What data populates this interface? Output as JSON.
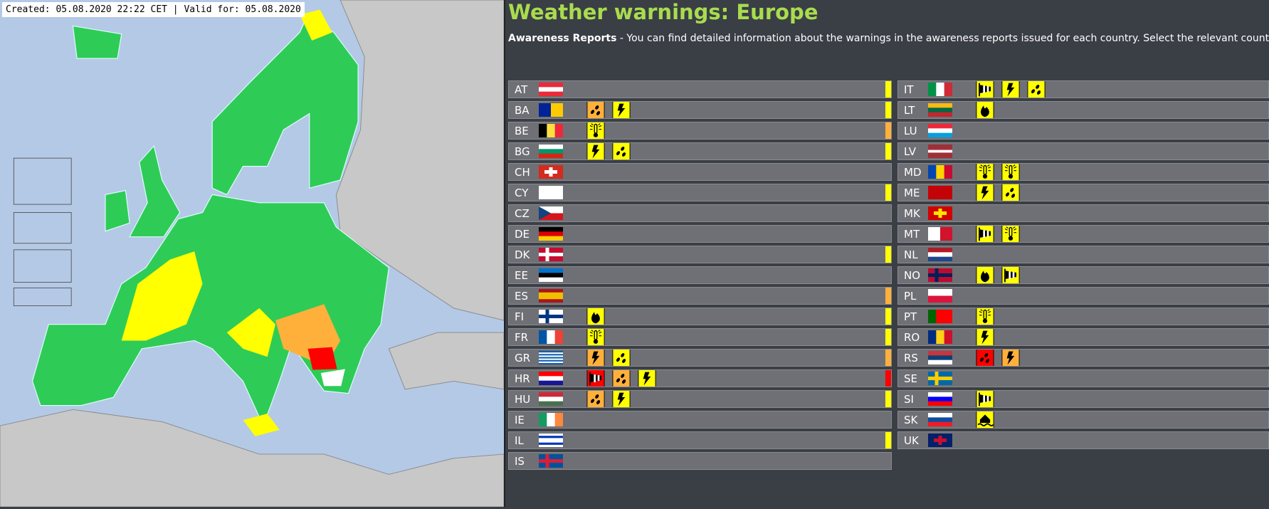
{
  "map": {
    "caption": "Created: 05.08.2020 22:22 CET | Valid for: 05.08.2020"
  },
  "header": {
    "title": "Weather warnings: Europe",
    "intro_label": "Awareness Reports",
    "intro_text": " - You can find detailed information about the warnings in the awareness reports issued for each country. Select the relevant country"
  },
  "columns": [
    [
      {
        "code": "AT",
        "flag_dir": "h",
        "flag": [
          "#ed2939",
          "#ffffff",
          "#ed2939"
        ],
        "warnings": [],
        "edge": "#ffff00"
      },
      {
        "code": "BA",
        "flag_dir": "v",
        "flag": [
          "#002395",
          "#fecb00"
        ],
        "warnings": [
          {
            "type": "rain",
            "color": "#ffb03b"
          },
          {
            "type": "thunderstorm",
            "color": "#ffff00"
          }
        ],
        "edge": "#ffff00"
      },
      {
        "code": "BE",
        "flag_dir": "v",
        "flag": [
          "#000000",
          "#fae042",
          "#ed2939"
        ],
        "warnings": [
          {
            "type": "heat",
            "color": "#ffff00"
          }
        ],
        "edge": "#ffb03b"
      },
      {
        "code": "BG",
        "flag_dir": "h",
        "flag": [
          "#ffffff",
          "#00966e",
          "#d62612"
        ],
        "warnings": [
          {
            "type": "thunderstorm",
            "color": "#ffff00"
          },
          {
            "type": "rain",
            "color": "#ffff00"
          }
        ],
        "edge": "#ffff00"
      },
      {
        "code": "CH",
        "flag_dir": "h",
        "flag": [
          "#d52b1e"
        ],
        "cross": "#ffffff",
        "cross_style": "centered",
        "warnings": []
      },
      {
        "code": "CY",
        "flag_dir": "h",
        "flag": [
          "#ffffff"
        ],
        "warnings": [],
        "edge": "#ffff00"
      },
      {
        "code": "CZ",
        "flag_dir": "h",
        "flag": [
          "#ffffff",
          "#d7141a"
        ],
        "triangle": "#11457e",
        "warnings": []
      },
      {
        "code": "DE",
        "flag_dir": "h",
        "flag": [
          "#000000",
          "#dd0000",
          "#ffce00"
        ],
        "warnings": []
      },
      {
        "code": "DK",
        "flag_dir": "h",
        "flag": [
          "#c60c30"
        ],
        "cross": "#ffffff",
        "cross_style": "nordic",
        "warnings": [],
        "edge": "#ffff00"
      },
      {
        "code": "EE",
        "flag_dir": "h",
        "flag": [
          "#0072ce",
          "#000000",
          "#ffffff"
        ],
        "warnings": []
      },
      {
        "code": "ES",
        "flag_dir": "h",
        "flag": [
          "#aa151b",
          "#f1bf00",
          "#f1bf00",
          "#aa151b"
        ],
        "warnings": [],
        "edge": "#ffb03b"
      },
      {
        "code": "FI",
        "flag_dir": "h",
        "flag": [
          "#ffffff"
        ],
        "cross": "#003580",
        "cross_style": "nordic",
        "warnings": [
          {
            "type": "fire",
            "color": "#ffff00"
          }
        ],
        "edge": "#ffff00"
      },
      {
        "code": "FR",
        "flag_dir": "v",
        "flag": [
          "#0055a4",
          "#ffffff",
          "#ef4135"
        ],
        "warnings": [
          {
            "type": "heat",
            "color": "#ffff00"
          }
        ],
        "edge": "#ffff00"
      },
      {
        "code": "GR",
        "flag_dir": "h",
        "flag": [
          "#0d5eaf",
          "#ffffff",
          "#0d5eaf",
          "#ffffff",
          "#0d5eaf",
          "#ffffff",
          "#0d5eaf",
          "#ffffff",
          "#0d5eaf"
        ],
        "warnings": [
          {
            "type": "thunderstorm",
            "color": "#ffb03b"
          },
          {
            "type": "rain",
            "color": "#ffff00"
          }
        ],
        "edge": "#ffb03b"
      },
      {
        "code": "HR",
        "flag_dir": "h",
        "flag": [
          "#ff0000",
          "#ffffff",
          "#171796"
        ],
        "warnings": [
          {
            "type": "wind",
            "color": "#ff0000"
          },
          {
            "type": "rain",
            "color": "#ffb03b"
          },
          {
            "type": "thunderstorm",
            "color": "#ffff00"
          }
        ],
        "edge": "#ff0000"
      },
      {
        "code": "HU",
        "flag_dir": "h",
        "flag": [
          "#ce2939",
          "#ffffff",
          "#477050"
        ],
        "warnings": [
          {
            "type": "rain",
            "color": "#ffb03b"
          },
          {
            "type": "thunderstorm",
            "color": "#ffff00"
          }
        ],
        "edge": "#ffff00"
      },
      {
        "code": "IE",
        "flag_dir": "v",
        "flag": [
          "#169b62",
          "#ffffff",
          "#ff883e"
        ],
        "warnings": []
      },
      {
        "code": "IL",
        "flag_dir": "h",
        "flag": [
          "#ffffff",
          "#0038b8",
          "#ffffff",
          "#ffffff",
          "#0038b8",
          "#ffffff"
        ],
        "warnings": [],
        "edge": "#ffff00"
      },
      {
        "code": "IS",
        "flag_dir": "h",
        "flag": [
          "#02529c"
        ],
        "cross": "#dc1e35",
        "cross_style": "nordic",
        "warnings": []
      }
    ],
    [
      {
        "code": "IT",
        "flag_dir": "v",
        "flag": [
          "#009246",
          "#ffffff",
          "#ce2b37"
        ],
        "warnings": [
          {
            "type": "wind",
            "color": "#ffff00"
          },
          {
            "type": "thunderstorm",
            "color": "#ffff00"
          },
          {
            "type": "rain",
            "color": "#ffff00"
          }
        ]
      },
      {
        "code": "LT",
        "flag_dir": "h",
        "flag": [
          "#fdb913",
          "#006a44",
          "#c1272d"
        ],
        "warnings": [
          {
            "type": "fire",
            "color": "#ffff00"
          }
        ]
      },
      {
        "code": "LU",
        "flag_dir": "h",
        "flag": [
          "#ed2939",
          "#ffffff",
          "#00a1de"
        ],
        "warnings": []
      },
      {
        "code": "LV",
        "flag_dir": "h",
        "flag": [
          "#9e3039",
          "#9e3039",
          "#ffffff",
          "#9e3039",
          "#9e3039"
        ],
        "warnings": []
      },
      {
        "code": "MD",
        "flag_dir": "v",
        "flag": [
          "#0046ae",
          "#ffd200",
          "#cc092f"
        ],
        "warnings": [
          {
            "type": "heat",
            "color": "#ffff00"
          },
          {
            "type": "heat",
            "color": "#ffff00"
          }
        ]
      },
      {
        "code": "ME",
        "flag_dir": "h",
        "flag": [
          "#c40308"
        ],
        "warnings": [
          {
            "type": "thunderstorm",
            "color": "#ffff00"
          },
          {
            "type": "rain",
            "color": "#ffff00"
          }
        ]
      },
      {
        "code": "MK",
        "flag_dir": "h",
        "flag": [
          "#d20000"
        ],
        "cross": "#ffe600",
        "cross_style": "centered",
        "warnings": []
      },
      {
        "code": "MT",
        "flag_dir": "v",
        "flag": [
          "#ffffff",
          "#cf142b"
        ],
        "warnings": [
          {
            "type": "wind",
            "color": "#ffff00"
          },
          {
            "type": "heat",
            "color": "#ffff00"
          }
        ]
      },
      {
        "code": "NL",
        "flag_dir": "h",
        "flag": [
          "#ae1c28",
          "#ffffff",
          "#21468b"
        ],
        "warnings": []
      },
      {
        "code": "NO",
        "flag_dir": "h",
        "flag": [
          "#ba0c2f"
        ],
        "cross": "#00205b",
        "cross_style": "nordic",
        "warnings": [
          {
            "type": "fire",
            "color": "#ffff00"
          },
          {
            "type": "wind",
            "color": "#ffff00"
          }
        ]
      },
      {
        "code": "PL",
        "flag_dir": "h",
        "flag": [
          "#ffffff",
          "#dc143c"
        ],
        "warnings": []
      },
      {
        "code": "PT",
        "flag_dir": "v",
        "flag": [
          "#006600",
          "#ff0000",
          "#ff0000"
        ],
        "warnings": [
          {
            "type": "heat",
            "color": "#ffff00"
          }
        ]
      },
      {
        "code": "RO",
        "flag_dir": "v",
        "flag": [
          "#002b7f",
          "#fcd116",
          "#ce1126"
        ],
        "warnings": [
          {
            "type": "thunderstorm",
            "color": "#ffff00"
          }
        ]
      },
      {
        "code": "RS",
        "flag_dir": "h",
        "flag": [
          "#c6363c",
          "#0c4076",
          "#ffffff"
        ],
        "warnings": [
          {
            "type": "rain",
            "color": "#ff0000"
          },
          {
            "type": "thunderstorm",
            "color": "#ffb03b"
          }
        ]
      },
      {
        "code": "SE",
        "flag_dir": "h",
        "flag": [
          "#006aa7"
        ],
        "cross": "#fecc00",
        "cross_style": "nordic",
        "warnings": []
      },
      {
        "code": "SI",
        "flag_dir": "h",
        "flag": [
          "#ffffff",
          "#0000ff",
          "#ff0000"
        ],
        "warnings": [
          {
            "type": "wind",
            "color": "#ffff00"
          }
        ]
      },
      {
        "code": "SK",
        "flag_dir": "h",
        "flag": [
          "#ffffff",
          "#0b4ea2",
          "#ee1c25"
        ],
        "warnings": [
          {
            "type": "flood",
            "color": "#ffff00"
          }
        ]
      },
      {
        "code": "UK",
        "flag_dir": "h",
        "flag": [
          "#012169"
        ],
        "cross": "#c8102e",
        "cross_style": "centered",
        "warnings": []
      }
    ]
  ]
}
